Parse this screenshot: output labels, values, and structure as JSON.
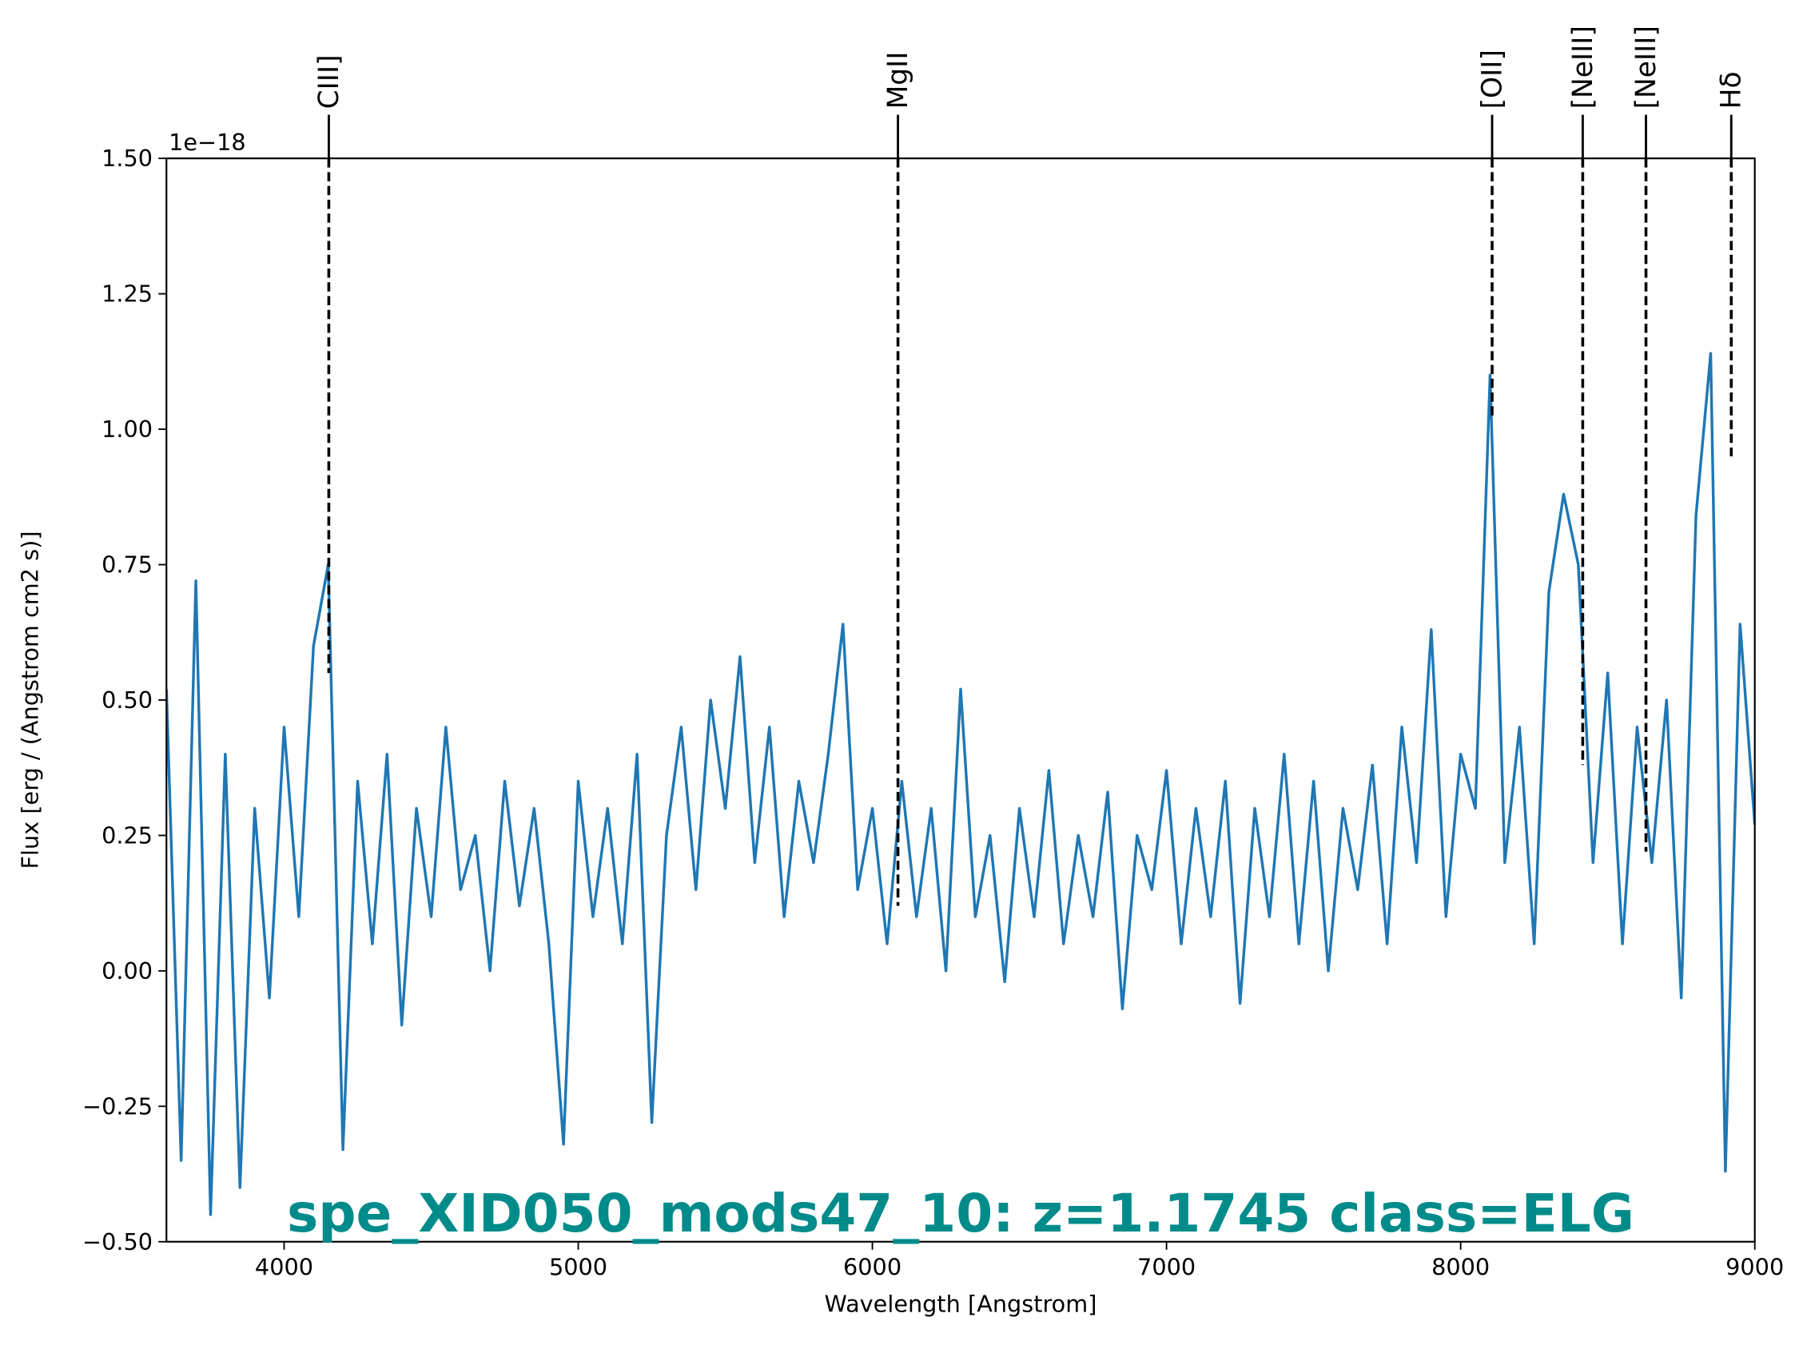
{
  "chart_data": {
    "type": "line",
    "title": "spe_XID050_mods47_10: z=1.1745 class=ELG",
    "title_color": "#008b8b",
    "x_label": "Wavelength [Angstrom]",
    "y_label": "Flux [erg / (Angstrom cm2 s)]",
    "y_offset_label": "1e−18",
    "xlim": [
      3600,
      9000
    ],
    "ylim": [
      -0.5,
      1.5
    ],
    "xticks": [
      4000,
      5000,
      6000,
      7000,
      8000,
      9000
    ],
    "yticks": [
      {
        "value": -0.5,
        "label": "−0.50"
      },
      {
        "value": -0.25,
        "label": "−0.25"
      },
      {
        "value": 0,
        "label": "0.00"
      },
      {
        "value": 0.25,
        "label": "0.25"
      },
      {
        "value": 0.5,
        "label": "0.50"
      },
      {
        "value": 0.75,
        "label": "0.75"
      },
      {
        "value": 1,
        "label": "1.00"
      },
      {
        "value": 1.25,
        "label": "1.25"
      },
      {
        "value": 1.5,
        "label": "1.50"
      }
    ],
    "x": [
      3600,
      3650,
      3700,
      3750,
      3800,
      3850,
      3900,
      3950,
      4000,
      4050,
      4100,
      4150,
      4200,
      4250,
      4300,
      4350,
      4400,
      4450,
      4500,
      4550,
      4600,
      4650,
      4700,
      4750,
      4800,
      4850,
      4900,
      4950,
      5000,
      5050,
      5100,
      5150,
      5200,
      5250,
      5300,
      5350,
      5400,
      5450,
      5500,
      5550,
      5600,
      5650,
      5700,
      5750,
      5800,
      5850,
      5900,
      5950,
      6000,
      6050,
      6100,
      6150,
      6200,
      6250,
      6300,
      6350,
      6400,
      6450,
      6500,
      6550,
      6600,
      6650,
      6700,
      6750,
      6800,
      6850,
      6900,
      6950,
      7000,
      7050,
      7100,
      7150,
      7200,
      7250,
      7300,
      7350,
      7400,
      7450,
      7500,
      7550,
      7600,
      7650,
      7700,
      7750,
      7800,
      7850,
      7900,
      7950,
      8000,
      8050,
      8100,
      8150,
      8200,
      8250,
      8300,
      8350,
      8400,
      8450,
      8500,
      8550,
      8600,
      8650,
      8700,
      8750,
      8800,
      8850,
      8900,
      8950,
      9000
    ],
    "series": [
      {
        "name": "flux",
        "color": "#1f77b4",
        "values": [
          0.52,
          -0.35,
          0.72,
          -0.45,
          0.4,
          -0.4,
          0.3,
          -0.05,
          0.45,
          0.1,
          0.6,
          0.75,
          -0.33,
          0.35,
          0.05,
          0.4,
          -0.1,
          0.3,
          0.1,
          0.45,
          0.15,
          0.25,
          0.0,
          0.35,
          0.12,
          0.3,
          0.05,
          -0.32,
          0.35,
          0.1,
          0.3,
          0.05,
          0.4,
          -0.28,
          0.25,
          0.45,
          0.15,
          0.5,
          0.3,
          0.58,
          0.2,
          0.45,
          0.1,
          0.35,
          0.2,
          0.4,
          0.64,
          0.15,
          0.3,
          0.05,
          0.35,
          0.1,
          0.3,
          0.0,
          0.52,
          0.1,
          0.25,
          -0.02,
          0.3,
          0.1,
          0.37,
          0.05,
          0.25,
          0.1,
          0.33,
          -0.07,
          0.25,
          0.15,
          0.37,
          0.05,
          0.3,
          0.1,
          0.35,
          -0.06,
          0.3,
          0.1,
          0.4,
          0.05,
          0.35,
          0.0,
          0.3,
          0.15,
          0.38,
          0.05,
          0.45,
          0.2,
          0.63,
          0.1,
          0.4,
          0.3,
          1.1,
          0.2,
          0.45,
          0.05,
          0.7,
          0.88,
          0.75,
          0.2,
          0.55,
          0.05,
          0.45,
          0.2,
          0.5,
          -0.05,
          0.84,
          1.14,
          -0.37,
          0.64,
          0.27
        ]
      }
    ],
    "lines": [
      {
        "label": "CIII]",
        "x": 4152,
        "y": 0.55
      },
      {
        "label": "MgII",
        "x": 6087,
        "y": 0.12
      },
      {
        "label": "[OII]",
        "x": 8107,
        "y": 1.02
      },
      {
        "label": "[NeIII]",
        "x": 8415,
        "y": 0.38
      },
      {
        "label": "[NeIII]",
        "x": 8630,
        "y": 0.22
      },
      {
        "label": "Hδ",
        "x": 8920,
        "y": 0.95
      }
    ]
  }
}
